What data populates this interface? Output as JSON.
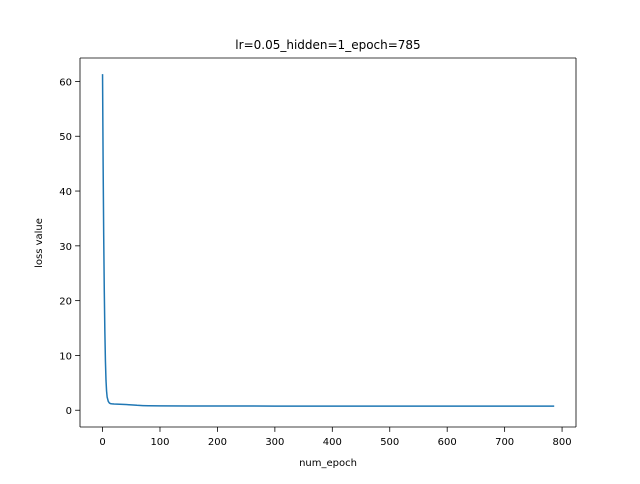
{
  "chart_data": {
    "type": "line",
    "title": "lr=0.05_hidden=1_epoch=785",
    "xlabel": "num_epoch",
    "ylabel": "loss value",
    "xlim": [
      -39.25,
      824.25
    ],
    "ylim": [
      -3.06,
      64.28
    ],
    "xticks": [
      0,
      100,
      200,
      300,
      400,
      500,
      600,
      700,
      800
    ],
    "yticks": [
      0,
      10,
      20,
      30,
      40,
      50,
      60
    ],
    "grid": false,
    "series": [
      {
        "color": "#1f77b4",
        "x": [
          0,
          1,
          2,
          3,
          4,
          5,
          6,
          7,
          8,
          10,
          12,
          14,
          17,
          20,
          25,
          30,
          40,
          50,
          60,
          70,
          80,
          100,
          150,
          200,
          300,
          400,
          500,
          600,
          700,
          785
        ],
        "y": [
          61.2,
          45.0,
          32.0,
          22.0,
          14.5,
          9.0,
          5.5,
          3.5,
          2.4,
          1.6,
          1.3,
          1.2,
          1.15,
          1.13,
          1.12,
          1.1,
          1.05,
          0.98,
          0.9,
          0.85,
          0.82,
          0.8,
          0.78,
          0.77,
          0.76,
          0.76,
          0.75,
          0.75,
          0.75,
          0.75
        ]
      }
    ]
  }
}
